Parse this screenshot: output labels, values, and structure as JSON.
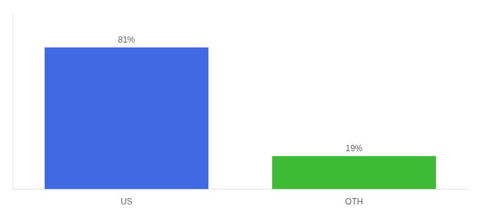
{
  "chart_data": {
    "type": "bar",
    "categories": [
      "US",
      "OTH"
    ],
    "values": [
      81,
      19
    ],
    "value_labels": [
      "81%",
      "19%"
    ],
    "colors": [
      "#4169e1",
      "#3dbb35"
    ],
    "ylim": [
      0,
      100
    ],
    "data_labels": true,
    "tick_labels": "x",
    "grid": false
  }
}
